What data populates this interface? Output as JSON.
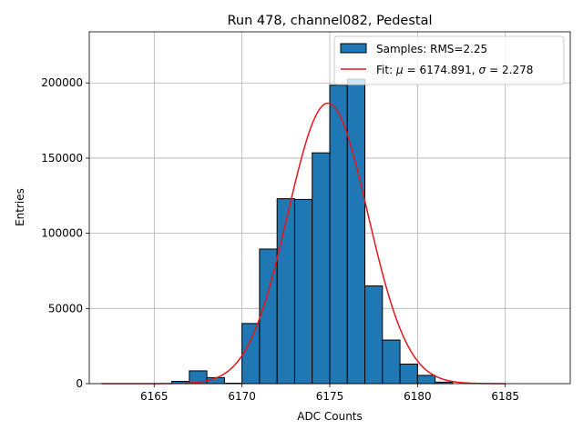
{
  "chart_data": {
    "type": "bar",
    "title": "Run 478, channel082, Pedestal",
    "xlabel": "ADC Counts",
    "ylabel": "Entries",
    "xlim": [
      6161.3,
      6188.7
    ],
    "ylim": [
      0,
      234000
    ],
    "xticks": [
      6165,
      6170,
      6175,
      6180,
      6185
    ],
    "yticks": [
      0,
      50000,
      100000,
      150000,
      200000
    ],
    "grid": true,
    "legend_position": "top-right",
    "colors": {
      "bars": "#1f77b4",
      "fit": "#e6161b",
      "grid": "#b0b0b0"
    },
    "histogram": {
      "name": "Samples: RMS=2.25",
      "bin_width": 1,
      "bin_starts": [
        6166,
        6167,
        6168,
        6169,
        6170,
        6171,
        6172,
        6173,
        6174,
        6175,
        6176,
        6177,
        6178,
        6179,
        6180,
        6181
      ],
      "counts": [
        1500,
        8500,
        4000,
        300,
        40000,
        89500,
        123000,
        122500,
        153500,
        198500,
        202500,
        65000,
        29000,
        13000,
        5500,
        1000
      ]
    },
    "fit": {
      "name": "Fit: μ = 6174.891, σ = 2.278",
      "label_prefix": "Fit: ",
      "mu_symbol": "μ",
      "sigma_symbol": "σ",
      "mu_value": "= 6174.891,",
      "sigma_value": "= 2.278",
      "mu": 6174.891,
      "sigma": 2.278,
      "amplitude": 186500,
      "x_range": [
        6162,
        6185
      ]
    }
  }
}
